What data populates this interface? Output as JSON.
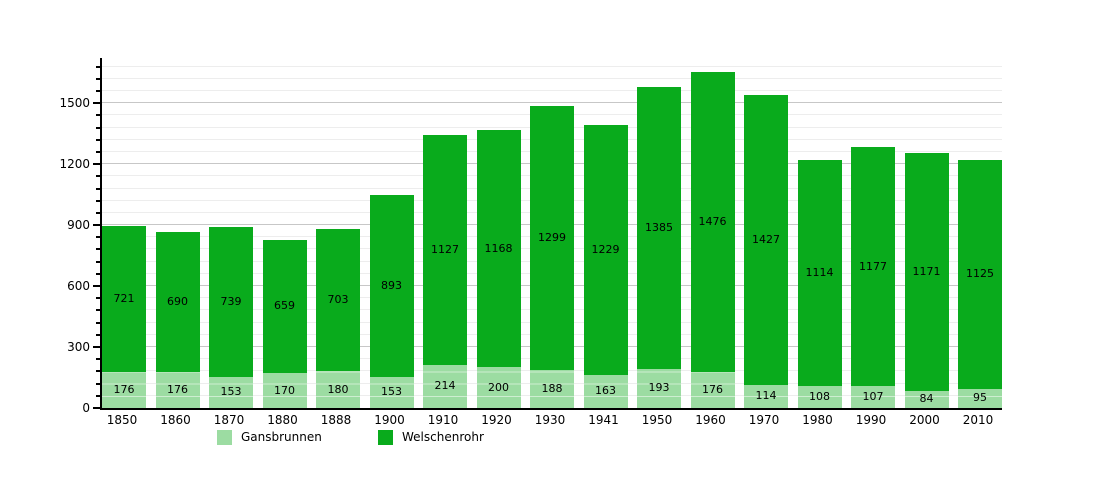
{
  "chart_data": {
    "type": "bar",
    "stacked": true,
    "title": "",
    "xlabel": "",
    "ylabel": "",
    "grid": true,
    "legend_position": "bottom",
    "categories": [
      "1850",
      "1860",
      "1870",
      "1880",
      "1888",
      "1900",
      "1910",
      "1920",
      "1930",
      "1941",
      "1950",
      "1960",
      "1970",
      "1980",
      "1990",
      "2000",
      "2010"
    ],
    "series": [
      {
        "name": "Gansbrunnen",
        "color": "#9cdca2",
        "values": [
          176,
          176,
          153,
          170,
          180,
          153,
          214,
          200,
          188,
          163,
          193,
          176,
          114,
          108,
          107,
          84,
          95
        ]
      },
      {
        "name": "Welschenrohr",
        "color": "#09ab1c",
        "values": [
          721,
          690,
          739,
          659,
          703,
          893,
          1127,
          1168,
          1299,
          1229,
          1385,
          1476,
          1427,
          1114,
          1177,
          1171,
          1125
        ]
      }
    ],
    "y_axis": {
      "min": 0,
      "max": 1722,
      "major_step": 300,
      "minor_step": 60,
      "major_tick_labels": [
        "0",
        "300",
        "600",
        "900",
        "1200",
        "1500"
      ]
    },
    "colors": {
      "axis": "#000000",
      "grid_major": "#c7c7c7",
      "grid_minor": "#ededed",
      "label_text": "#000000",
      "background": "#ffffff"
    }
  }
}
